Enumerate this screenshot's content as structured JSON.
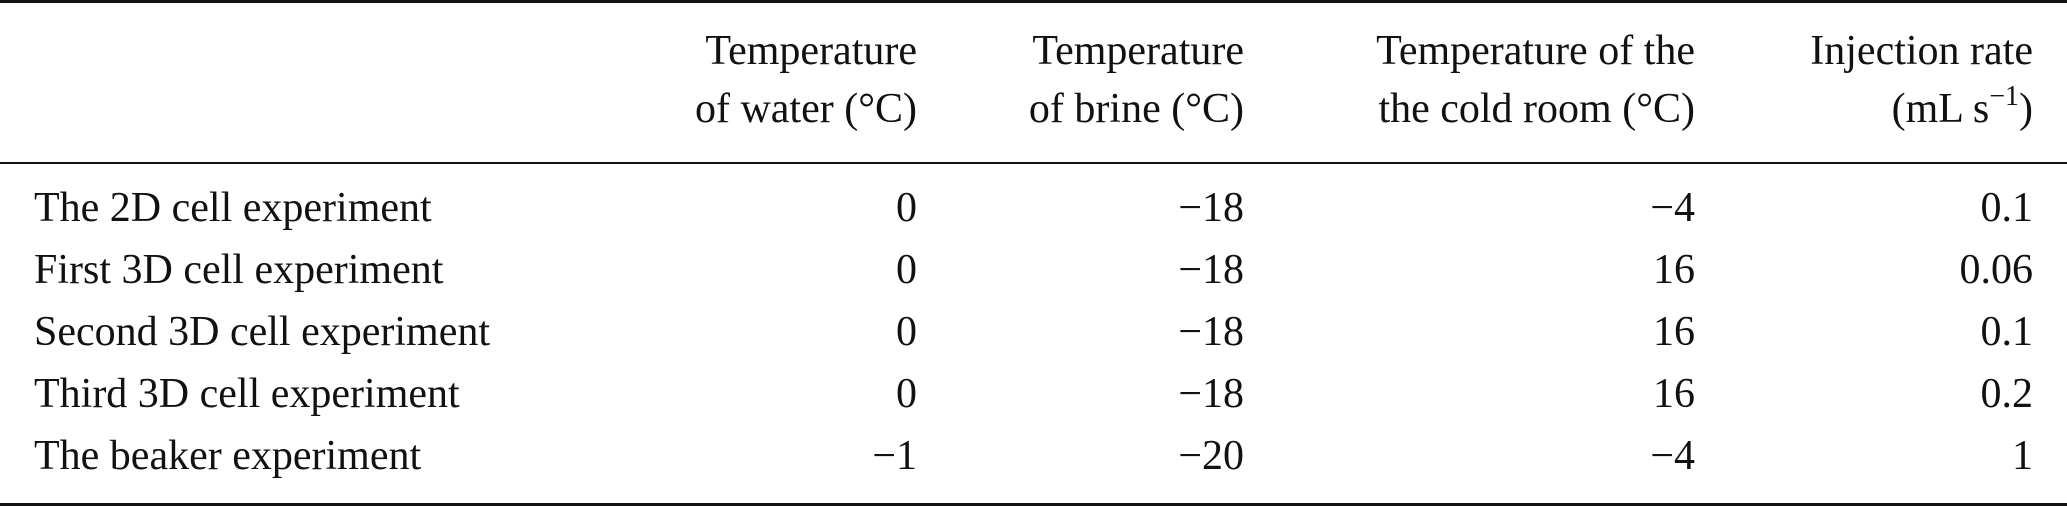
{
  "table": {
    "headers": [
      {
        "line1": "Temperature",
        "line2": "of water (°C)"
      },
      {
        "line1": "Temperature",
        "line2": "of brine (°C)"
      },
      {
        "line1": "Temperature of the",
        "line2": "the cold room (°C)"
      },
      {
        "line1": "Injection rate",
        "line2_pre": "(mL s",
        "line2_sup": "−1",
        "line2_post": ")"
      }
    ],
    "rows": [
      {
        "label": "The 2D cell experiment",
        "water": "0",
        "brine": "−18",
        "room": "−4",
        "rate": "0.1"
      },
      {
        "label": "First 3D cell experiment",
        "water": "0",
        "brine": "−18",
        "room": "16",
        "rate": "0.06"
      },
      {
        "label": "Second 3D cell experiment",
        "water": "0",
        "brine": "−18",
        "room": "16",
        "rate": "0.1"
      },
      {
        "label": "Third 3D cell experiment",
        "water": "0",
        "brine": "−18",
        "room": "16",
        "rate": "0.2"
      },
      {
        "label": "The beaker experiment",
        "water": "−1",
        "brine": "−20",
        "room": "−4",
        "rate": "1"
      }
    ]
  }
}
